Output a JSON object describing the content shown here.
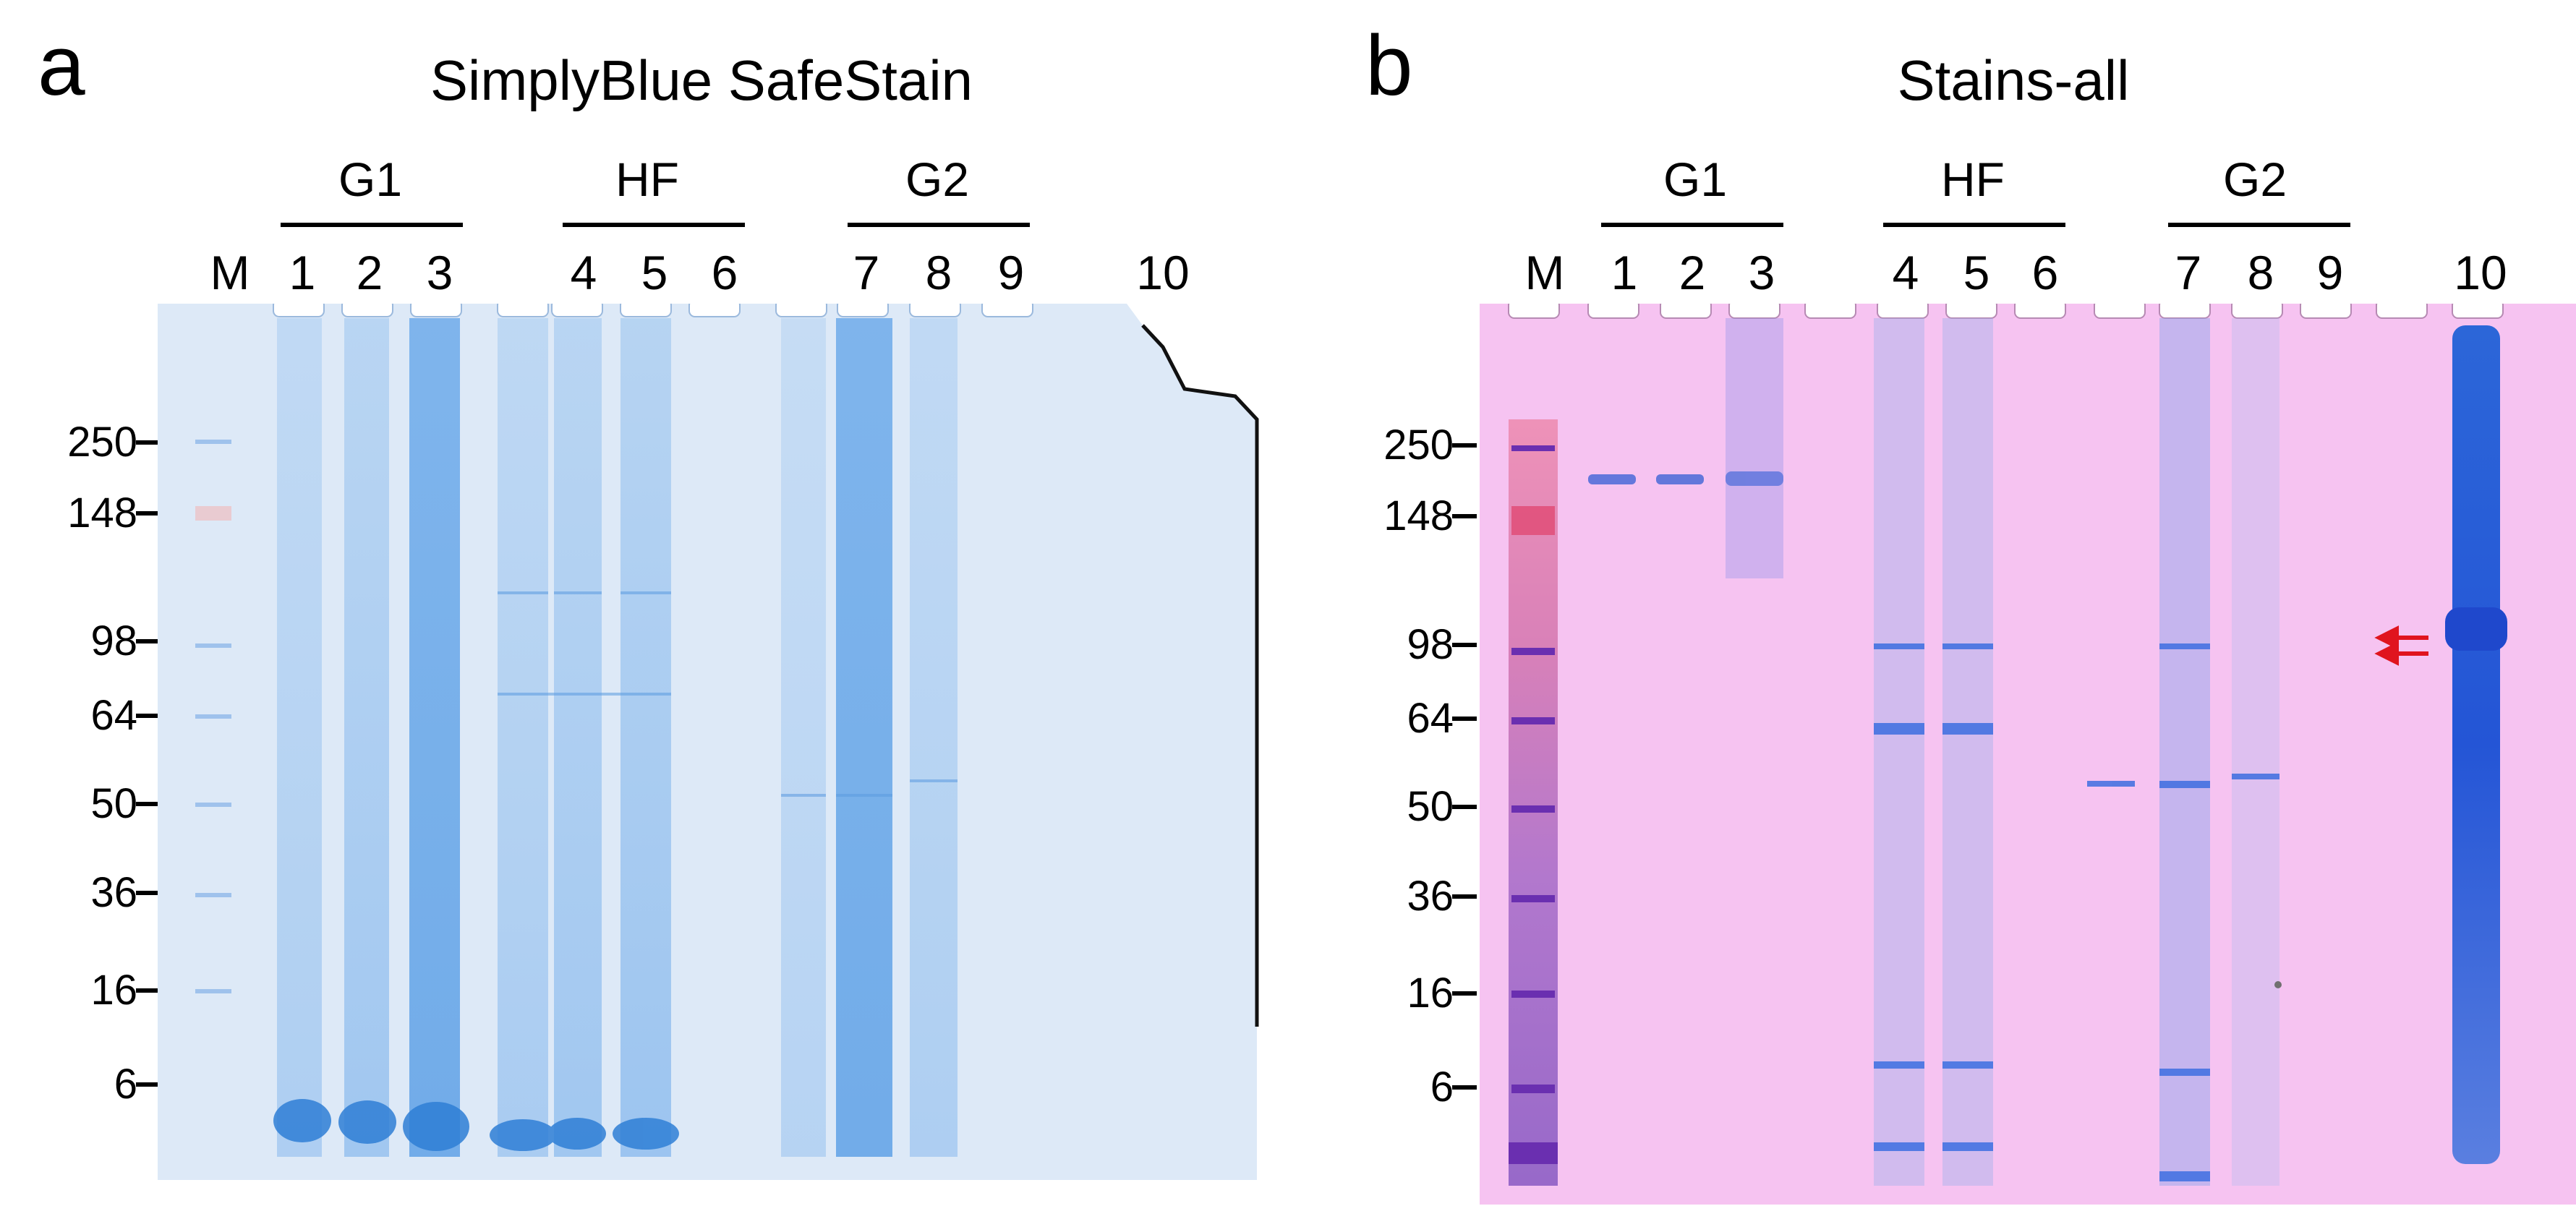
{
  "panels": [
    {
      "letter": "a",
      "title": "SimplyBlue SafeStain",
      "groups": [
        {
          "label": "G1"
        },
        {
          "label": "HF"
        },
        {
          "label": "G2"
        }
      ],
      "lanes": [
        "M",
        "1",
        "2",
        "3",
        "4",
        "5",
        "6",
        "7",
        "8",
        "9",
        "10"
      ],
      "mw_markers": [
        "250",
        "148",
        "98",
        "64",
        "50",
        "36",
        "16",
        "6"
      ],
      "colors": {
        "background": "#dce9f7",
        "band": "#3b8ee0",
        "marker": "#e88a8a"
      }
    },
    {
      "letter": "b",
      "title": "Stains-all",
      "groups": [
        {
          "label": "G1"
        },
        {
          "label": "HF"
        },
        {
          "label": "G2"
        }
      ],
      "lanes": [
        "M",
        "1",
        "2",
        "3",
        "4",
        "5",
        "6",
        "7",
        "8",
        "9",
        "10"
      ],
      "mw_markers": [
        "250",
        "148",
        "98",
        "64",
        "50",
        "36",
        "16",
        "6"
      ],
      "colors": {
        "background": "#f6c3f2",
        "band": "#2f5fe0",
        "marker_top": "#e0406a",
        "marker_bottom": "#4a1fa8",
        "arrow": "#e0141e"
      },
      "arrows": [
        "arrow-upper",
        "arrow-lower"
      ]
    }
  ]
}
